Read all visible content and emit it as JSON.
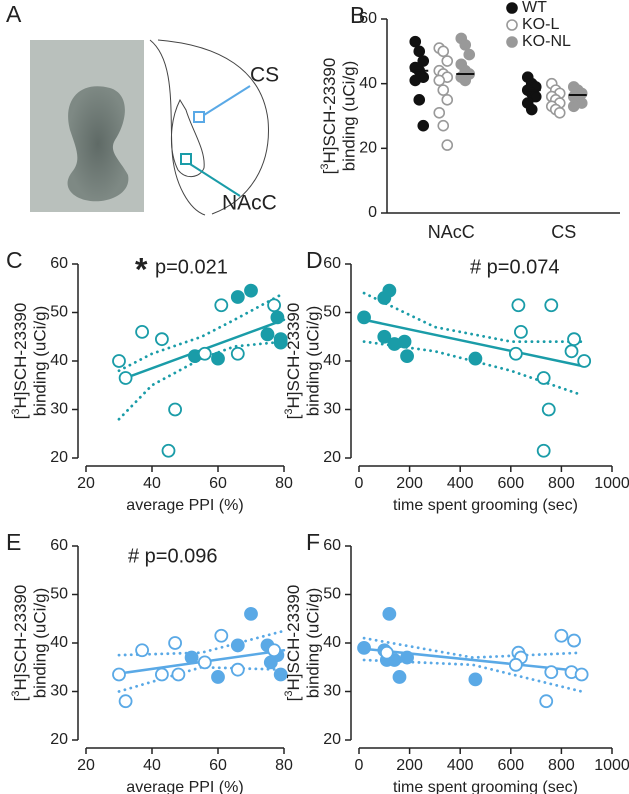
{
  "panel_a": {
    "label": "A",
    "annotations": [
      "CS",
      "NAcC"
    ],
    "annotation_colors": [
      "#5aa9e6",
      "#1a9ca8"
    ]
  },
  "chart_data": [
    {
      "type": "strip",
      "panel": "B",
      "categories": [
        "NAcC",
        "CS"
      ],
      "category_colors": [
        "#1a9ca8",
        "#5aa9e6"
      ],
      "ylabel": {
        "pre": "[",
        "sup": "3",
        "post": "H]SCH-23390",
        "line2": "binding (uCi/g)"
      },
      "ylim": [
        0,
        60
      ],
      "yticks": [
        0,
        20,
        40,
        60
      ],
      "series": [
        {
          "name": "WT",
          "color": "#111111",
          "filled": true,
          "values": [
            [
              53,
              50,
              47,
              45,
              44,
              42,
              41,
              35,
              27
            ],
            [
              42,
              40,
              39,
              38,
              37,
              36,
              34,
              32
            ]
          ],
          "means": [
            44,
            38
          ]
        },
        {
          "name": "KO-L",
          "color": "#999999",
          "filled": false,
          "values": [
            [
              51,
              50,
              47,
              44,
              43,
              42,
              41,
              38,
              35,
              31,
              27,
              21
            ],
            [
              40,
              38,
              37,
              36,
              35,
              34,
              33,
              32,
              31
            ]
          ]
        },
        {
          "name": "KO-NL",
          "color": "#999999",
          "filled": true,
          "values": [
            [
              54,
              52,
              49,
              46,
              44,
              43,
              42,
              41
            ],
            [
              39,
              38,
              37,
              36,
              35,
              34,
              33
            ]
          ],
          "means": [
            43,
            36.5
          ]
        }
      ]
    },
    {
      "type": "scatter",
      "panel": "C",
      "color": "#1a9ca8",
      "annotations": [
        "*",
        "p=0.021"
      ],
      "xlabel": "average PPI (%)",
      "ylabel": {
        "pre": "[",
        "sup": "3",
        "post": "H]SCH-23390",
        "line2": "binding (uCi/g)"
      },
      "xlim": [
        20,
        80
      ],
      "xticks": [
        20,
        40,
        60,
        80
      ],
      "ylim": [
        20,
        60
      ],
      "yticks": [
        20,
        30,
        40,
        50,
        60
      ],
      "points": [
        {
          "filled": true,
          "x": [
            70,
            66,
            78,
            75,
            79,
            79,
            60,
            53
          ],
          "y": [
            54.5,
            53.2,
            49,
            45.5,
            44.5,
            43.8,
            40.5,
            41
          ]
        },
        {
          "filled": false,
          "x": [
            30,
            32,
            37,
            43,
            47,
            45,
            56,
            61,
            66,
            77
          ],
          "y": [
            40,
            36.5,
            46,
            44.5,
            30,
            21.5,
            41.5,
            51.5,
            41.5,
            51.5
          ]
        }
      ],
      "fit": {
        "x": [
          32,
          80
        ],
        "y": [
          36.5,
          48.5
        ]
      },
      "band_upper": {
        "x": [
          30,
          40,
          55,
          65,
          80
        ],
        "y": [
          38,
          41.5,
          45,
          48.5,
          54
        ]
      },
      "band_lower": {
        "x": [
          30,
          40,
          55,
          65,
          80
        ],
        "y": [
          28,
          35,
          40.5,
          43,
          44
        ]
      }
    },
    {
      "type": "scatter",
      "panel": "D",
      "color": "#1a9ca8",
      "annotations": [
        "# p=0.074"
      ],
      "xlabel": "time spent grooming (sec)",
      "ylabel": {
        "pre": "[",
        "sup": "3",
        "post": "H]SCH-23390",
        "line2": "binding (uCi/g)"
      },
      "xlim": [
        0,
        1000
      ],
      "xticks": [
        0,
        200,
        400,
        600,
        800,
        1000
      ],
      "ylim": [
        20,
        60
      ],
      "yticks": [
        20,
        30,
        40,
        50,
        60
      ],
      "points": [
        {
          "filled": true,
          "x": [
            120,
            100,
            20,
            100,
            140,
            180,
            190,
            460
          ],
          "y": [
            54.5,
            53,
            49,
            45,
            43.5,
            44,
            41,
            40.5
          ]
        },
        {
          "filled": false,
          "x": [
            630,
            760,
            640,
            850,
            620,
            840,
            890,
            730,
            750,
            730
          ],
          "y": [
            51.5,
            51.5,
            46,
            44.5,
            41.5,
            42,
            40,
            36.5,
            30,
            21.5
          ]
        }
      ],
      "fit": {
        "x": [
          20,
          880
        ],
        "y": [
          48.5,
          39
        ]
      },
      "band_upper": {
        "x": [
          20,
          300,
          600,
          880
        ],
        "y": [
          54,
          47,
          44,
          44
        ]
      },
      "band_lower": {
        "x": [
          20,
          300,
          600,
          880
        ],
        "y": [
          44,
          42,
          38,
          33
        ]
      }
    },
    {
      "type": "scatter",
      "panel": "E",
      "color": "#5aa9e6",
      "annotations": [
        "# p=0.096"
      ],
      "xlabel": "average PPI (%)",
      "ylabel": {
        "pre": "[",
        "sup": "3",
        "post": "H]SCH-23390",
        "line2": "binding (uCi/g)"
      },
      "xlim": [
        20,
        80
      ],
      "xticks": [
        20,
        40,
        60,
        80
      ],
      "ylim": [
        20,
        60
      ],
      "yticks": [
        20,
        30,
        40,
        50,
        60
      ],
      "points": [
        {
          "filled": true,
          "x": [
            70,
            66,
            75,
            78,
            79,
            52,
            60,
            76
          ],
          "y": [
            46,
            39.5,
            39.5,
            37.5,
            33.5,
            37,
            33,
            36
          ]
        },
        {
          "filled": false,
          "x": [
            30,
            32,
            37,
            43,
            47,
            48,
            56,
            61,
            66,
            77
          ],
          "y": [
            33.5,
            28,
            38.5,
            33.5,
            40,
            33.5,
            36,
            41.5,
            34.5,
            38.5
          ]
        }
      ],
      "fit": {
        "x": [
          30,
          80
        ],
        "y": [
          33.7,
          38.5
        ]
      },
      "band_upper": {
        "x": [
          30,
          55,
          80
        ],
        "y": [
          37.5,
          38,
          42.5
        ]
      },
      "band_lower": {
        "x": [
          30,
          55,
          80
        ],
        "y": [
          30,
          35,
          34.5
        ]
      }
    },
    {
      "type": "scatter",
      "panel": "F",
      "color": "#5aa9e6",
      "annotations": [],
      "xlabel": "time spent grooming (sec)",
      "ylabel": {
        "pre": "[",
        "sup": "3",
        "post": "H]SCH-23390",
        "line2": "binding (uCi/g)"
      },
      "xlim": [
        0,
        1000
      ],
      "xticks": [
        0,
        200,
        400,
        600,
        800,
        1000
      ],
      "ylim": [
        20,
        60
      ],
      "yticks": [
        20,
        30,
        40,
        50,
        60
      ],
      "points": [
        {
          "filled": true,
          "x": [
            20,
            100,
            120,
            110,
            140,
            190,
            160,
            460
          ],
          "y": [
            39,
            38.5,
            46,
            36.5,
            36.5,
            37,
            33,
            32.5
          ]
        },
        {
          "filled": false,
          "x": [
            630,
            640,
            620,
            850,
            800,
            760,
            740,
            840,
            880,
            110
          ],
          "y": [
            38,
            37,
            35.5,
            40.5,
            41.5,
            34,
            28,
            34,
            33.5,
            38
          ]
        }
      ],
      "fit": {
        "x": [
          20,
          880
        ],
        "y": [
          38.8,
          34.2
        ]
      },
      "band_upper": {
        "x": [
          20,
          450,
          880
        ],
        "y": [
          41,
          37,
          38
        ]
      },
      "band_lower": {
        "x": [
          20,
          450,
          880
        ],
        "y": [
          36.5,
          35.5,
          30
        ]
      }
    }
  ]
}
